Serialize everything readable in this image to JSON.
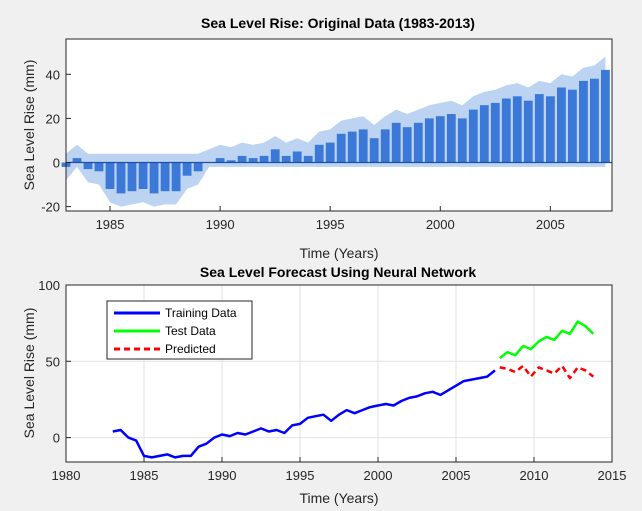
{
  "chart_data": [
    {
      "type": "bar",
      "title": "Sea Level Rise: Original Data (1983-2013)",
      "xlabel": "Time (Years)",
      "ylabel": "Sea Level Rise (mm)",
      "xlim": [
        1983,
        2007.8
      ],
      "ylim": [
        -22,
        56
      ],
      "xticks": [
        1985,
        1990,
        1995,
        2000,
        2005
      ],
      "yticks": [
        -20,
        0,
        20,
        40
      ],
      "grid": false,
      "colors": {
        "bar": "#3b78d8",
        "envelope": "#bcd4f2"
      },
      "series": [
        {
          "x": [
            1983.0,
            1983.5,
            1984.0,
            1984.5,
            1985.0,
            1985.5,
            1986.0,
            1986.5,
            1987.0,
            1987.5,
            1988.0,
            1988.5,
            1989.0,
            1989.5,
            1990.0,
            1990.5,
            1991.0,
            1991.5,
            1992.0,
            1992.5,
            1993.0,
            1993.5,
            1994.0,
            1994.5,
            1995.0,
            1995.5,
            1996.0,
            1996.5,
            1997.0,
            1997.5,
            1998.0,
            1998.5,
            1999.0,
            1999.5,
            2000.0,
            2000.5,
            2001.0,
            2001.5,
            2002.0,
            2002.5,
            2003.0,
            2003.5,
            2004.0,
            2004.5,
            2005.0,
            2005.5,
            2006.0,
            2006.5,
            2007.0,
            2007.5
          ],
          "values": [
            -2,
            2,
            -3,
            -4,
            -12,
            -14,
            -13,
            -12,
            -14,
            -13,
            -13,
            -6,
            -4,
            0,
            2,
            1,
            3,
            2,
            3,
            6,
            3,
            5,
            3,
            8,
            9,
            13,
            14,
            15,
            11,
            15,
            18,
            16,
            18,
            20,
            21,
            22,
            20,
            24,
            26,
            27,
            29,
            30,
            28,
            31,
            30,
            34,
            33,
            37,
            38,
            42
          ]
        }
      ]
    },
    {
      "type": "line",
      "title": "Sea Level Forecast Using Neural Network",
      "xlabel": "Time (Years)",
      "ylabel": "Sea Level Rise (mm)",
      "xlim": [
        1980,
        2015
      ],
      "ylim": [
        -16,
        100
      ],
      "xticks": [
        1980,
        1985,
        1990,
        1995,
        2000,
        2005,
        2010,
        2015
      ],
      "yticks": [
        0,
        50,
        100
      ],
      "grid": true,
      "legend": "top-left",
      "series": [
        {
          "name": "Training Data",
          "color": "#0000ff",
          "x": [
            1983.0,
            1983.5,
            1984.0,
            1984.5,
            1985.0,
            1985.5,
            1986.0,
            1986.5,
            1987.0,
            1987.5,
            1988.0,
            1988.5,
            1989.0,
            1989.5,
            1990.0,
            1990.5,
            1991.0,
            1991.5,
            1992.0,
            1992.5,
            1993.0,
            1993.5,
            1994.0,
            1994.5,
            1995.0,
            1995.5,
            1996.0,
            1996.5,
            1997.0,
            1997.5,
            1998.0,
            1998.5,
            1999.0,
            1999.5,
            2000.0,
            2000.5,
            2001.0,
            2001.5,
            2002.0,
            2002.5,
            2003.0,
            2003.5,
            2004.0,
            2004.5,
            2005.0,
            2005.5,
            2006.0,
            2006.5,
            2007.0,
            2007.5
          ],
          "y": [
            4,
            5,
            0,
            -2,
            -12,
            -13,
            -12,
            -11,
            -13,
            -12,
            -12,
            -6,
            -4,
            0,
            2,
            1,
            3,
            2,
            4,
            6,
            4,
            5,
            3,
            8,
            9,
            13,
            14,
            15,
            11,
            15,
            18,
            16,
            18,
            20,
            21,
            22,
            21,
            24,
            26,
            27,
            29,
            30,
            28,
            31,
            34,
            37,
            38,
            39,
            40,
            44
          ]
        },
        {
          "name": "Test Data",
          "color": "#00ff00",
          "x": [
            2007.8,
            2008.3,
            2008.8,
            2009.3,
            2009.8,
            2010.3,
            2010.8,
            2011.3,
            2011.8,
            2012.3,
            2012.8,
            2013.3,
            2013.8
          ],
          "y": [
            52,
            56,
            54,
            60,
            58,
            63,
            66,
            64,
            70,
            68,
            76,
            73,
            68
          ]
        },
        {
          "name": "Predicted",
          "color": "#ff0000",
          "x": [
            2007.8,
            2008.3,
            2008.8,
            2009.3,
            2009.8,
            2010.3,
            2010.8,
            2011.3,
            2011.8,
            2012.3,
            2012.8,
            2013.3,
            2013.8
          ],
          "y": [
            46,
            45,
            43,
            47,
            40,
            46,
            44,
            42,
            47,
            39,
            46,
            44,
            40
          ]
        }
      ]
    }
  ]
}
